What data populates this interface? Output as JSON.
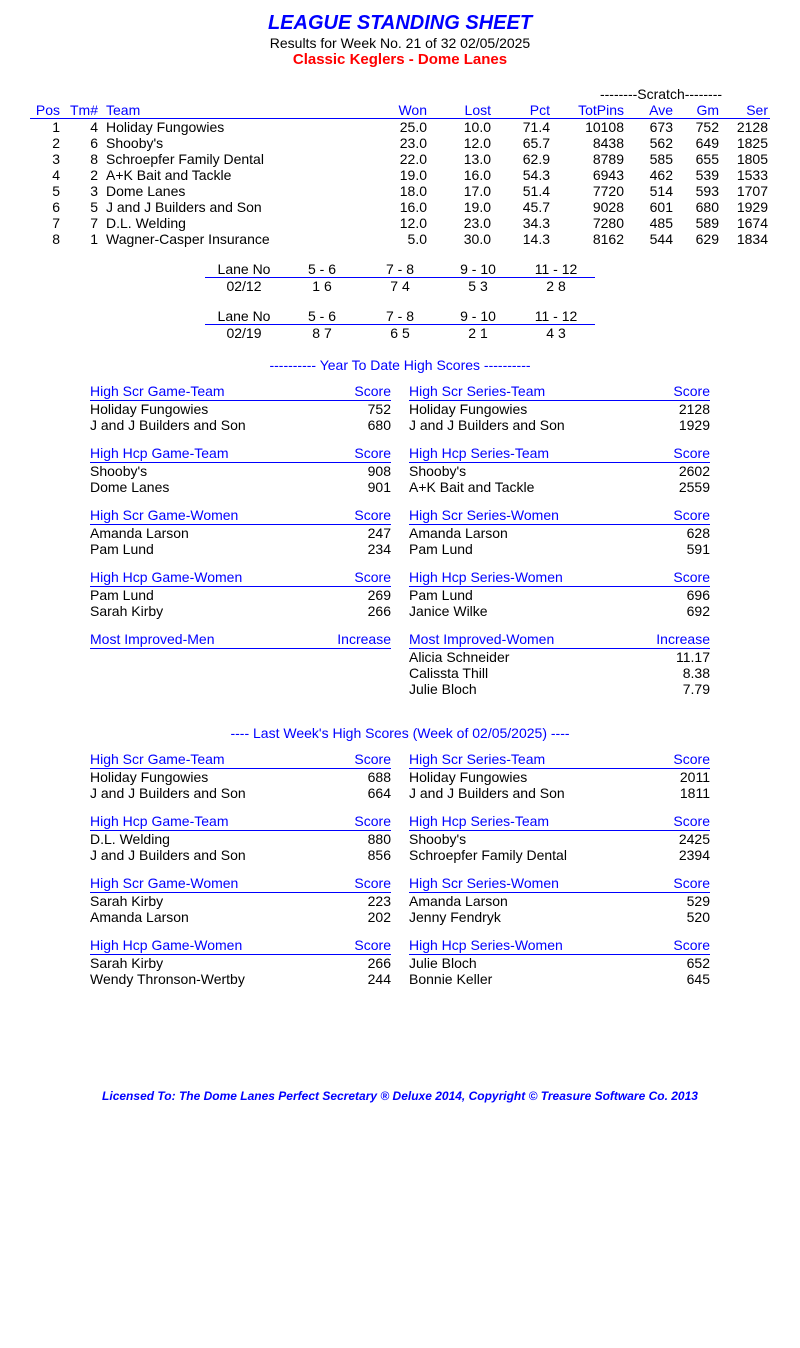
{
  "header": {
    "title": "LEAGUE STANDING SHEET",
    "subtitle": "Results for Week No. 21 of 32    02/05/2025",
    "league": "Classic Keglers - Dome Lanes"
  },
  "scratch_label": "--------Scratch--------",
  "standings": {
    "columns": {
      "pos": "Pos",
      "tm": "Tm#",
      "team": "Team",
      "won": "Won",
      "lost": "Lost",
      "pct": "Pct",
      "totpins": "TotPins",
      "ave": "Ave",
      "gm": "Gm",
      "ser": "Ser"
    },
    "rows": [
      {
        "pos": "1",
        "tm": "4",
        "team": "Holiday Fungowies",
        "won": "25.0",
        "lost": "10.0",
        "pct": "71.4",
        "totpins": "10108",
        "ave": "673",
        "gm": "752",
        "ser": "2128"
      },
      {
        "pos": "2",
        "tm": "6",
        "team": "Shooby's",
        "won": "23.0",
        "lost": "12.0",
        "pct": "65.7",
        "totpins": "8438",
        "ave": "562",
        "gm": "649",
        "ser": "1825"
      },
      {
        "pos": "3",
        "tm": "8",
        "team": "Schroepfer Family Dental",
        "won": "22.0",
        "lost": "13.0",
        "pct": "62.9",
        "totpins": "8789",
        "ave": "585",
        "gm": "655",
        "ser": "1805"
      },
      {
        "pos": "4",
        "tm": "2",
        "team": "A+K Bait and Tackle",
        "won": "19.0",
        "lost": "16.0",
        "pct": "54.3",
        "totpins": "6943",
        "ave": "462",
        "gm": "539",
        "ser": "1533"
      },
      {
        "pos": "5",
        "tm": "3",
        "team": "Dome Lanes",
        "won": "18.0",
        "lost": "17.0",
        "pct": "51.4",
        "totpins": "7720",
        "ave": "514",
        "gm": "593",
        "ser": "1707"
      },
      {
        "pos": "6",
        "tm": "5",
        "team": "J and J Builders and Son",
        "won": "16.0",
        "lost": "19.0",
        "pct": "45.7",
        "totpins": "9028",
        "ave": "601",
        "gm": "680",
        "ser": "1929"
      },
      {
        "pos": "7",
        "tm": "7",
        "team": "D.L. Welding",
        "won": "12.0",
        "lost": "23.0",
        "pct": "34.3",
        "totpins": "7280",
        "ave": "485",
        "gm": "589",
        "ser": "1674"
      },
      {
        "pos": "8",
        "tm": "1",
        "team": "Wagner-Casper Insurance",
        "won": "5.0",
        "lost": "30.0",
        "pct": "14.3",
        "totpins": "8162",
        "ave": "544",
        "gm": "629",
        "ser": "1834"
      }
    ]
  },
  "lane_assignments": [
    {
      "label": "Lane No",
      "lanes": [
        "5 -  6",
        "7 -  8",
        "9 - 10",
        "11 - 12"
      ],
      "date": "02/12",
      "teams": [
        "1   6",
        "7   4",
        "5   3",
        "2   8"
      ]
    },
    {
      "label": "Lane No",
      "lanes": [
        "5 -  6",
        "7 -  8",
        "9 - 10",
        "11 - 12"
      ],
      "date": "02/19",
      "teams": [
        "8   7",
        "6   5",
        "2   1",
        "4   3"
      ]
    }
  ],
  "ytd_title": "----------  Year To Date High Scores  ----------",
  "ytd": [
    [
      {
        "head": "High Scr Game-Team",
        "scorelabel": "Score",
        "rows": [
          [
            "Holiday Fungowies",
            "752"
          ],
          [
            "J and J Builders and Son",
            "680"
          ]
        ]
      },
      {
        "head": "High Scr Series-Team",
        "scorelabel": "Score",
        "rows": [
          [
            "Holiday Fungowies",
            "2128"
          ],
          [
            "J and J Builders and Son",
            "1929"
          ]
        ]
      }
    ],
    [
      {
        "head": "High Hcp Game-Team",
        "scorelabel": "Score",
        "rows": [
          [
            "Shooby's",
            "908"
          ],
          [
            "Dome Lanes",
            "901"
          ]
        ]
      },
      {
        "head": "High Hcp Series-Team",
        "scorelabel": "Score",
        "rows": [
          [
            "Shooby's",
            "2602"
          ],
          [
            "A+K Bait and Tackle",
            "2559"
          ]
        ]
      }
    ],
    [
      {
        "head": "High Scr Game-Women",
        "scorelabel": "Score",
        "rows": [
          [
            "Amanda Larson",
            "247"
          ],
          [
            "Pam Lund",
            "234"
          ]
        ]
      },
      {
        "head": "High Scr Series-Women",
        "scorelabel": "Score",
        "rows": [
          [
            "Amanda Larson",
            "628"
          ],
          [
            "Pam Lund",
            "591"
          ]
        ]
      }
    ],
    [
      {
        "head": "High Hcp Game-Women",
        "scorelabel": "Score",
        "rows": [
          [
            "Pam Lund",
            "269"
          ],
          [
            "Sarah Kirby",
            "266"
          ]
        ]
      },
      {
        "head": "High Hcp Series-Women",
        "scorelabel": "Score",
        "rows": [
          [
            "Pam Lund",
            "696"
          ],
          [
            "Janice Wilke",
            "692"
          ]
        ]
      }
    ],
    [
      {
        "head": "Most Improved-Men",
        "scorelabel": "Increase",
        "rows": []
      },
      {
        "head": "Most Improved-Women",
        "scorelabel": "Increase",
        "rows": [
          [
            "Alicia Schneider",
            "11.17"
          ],
          [
            "Calissta Thill",
            "8.38"
          ],
          [
            "Julie Bloch",
            "7.79"
          ]
        ]
      }
    ]
  ],
  "lastweek_title": "----   Last Week's High Scores   (Week of 02/05/2025)   ----",
  "lastweek": [
    [
      {
        "head": "High Scr Game-Team",
        "scorelabel": "Score",
        "rows": [
          [
            "Holiday Fungowies",
            "688"
          ],
          [
            "J and J Builders and Son",
            "664"
          ]
        ]
      },
      {
        "head": "High Scr Series-Team",
        "scorelabel": "Score",
        "rows": [
          [
            "Holiday Fungowies",
            "2011"
          ],
          [
            "J and J Builders and Son",
            "1811"
          ]
        ]
      }
    ],
    [
      {
        "head": "High Hcp Game-Team",
        "scorelabel": "Score",
        "rows": [
          [
            "D.L. Welding",
            "880"
          ],
          [
            "J and J Builders and Son",
            "856"
          ]
        ]
      },
      {
        "head": "High Hcp Series-Team",
        "scorelabel": "Score",
        "rows": [
          [
            "Shooby's",
            "2425"
          ],
          [
            "Schroepfer Family Dental",
            "2394"
          ]
        ]
      }
    ],
    [
      {
        "head": "High Scr Game-Women",
        "scorelabel": "Score",
        "rows": [
          [
            "Sarah Kirby",
            "223"
          ],
          [
            "Amanda Larson",
            "202"
          ]
        ]
      },
      {
        "head": "High Scr Series-Women",
        "scorelabel": "Score",
        "rows": [
          [
            "Amanda Larson",
            "529"
          ],
          [
            "Jenny Fendryk",
            "520"
          ]
        ]
      }
    ],
    [
      {
        "head": "High Hcp Game-Women",
        "scorelabel": "Score",
        "rows": [
          [
            "Sarah Kirby",
            "266"
          ],
          [
            "Wendy Thronson-Wertby",
            "244"
          ]
        ]
      },
      {
        "head": "High Hcp Series-Women",
        "scorelabel": "Score",
        "rows": [
          [
            "Julie Bloch",
            "652"
          ],
          [
            "Bonnie Keller",
            "645"
          ]
        ]
      }
    ]
  ],
  "footer": "Licensed To: The Dome Lanes     Perfect Secretary ® Deluxe  2014, Copyright © Treasure Software Co. 2013"
}
